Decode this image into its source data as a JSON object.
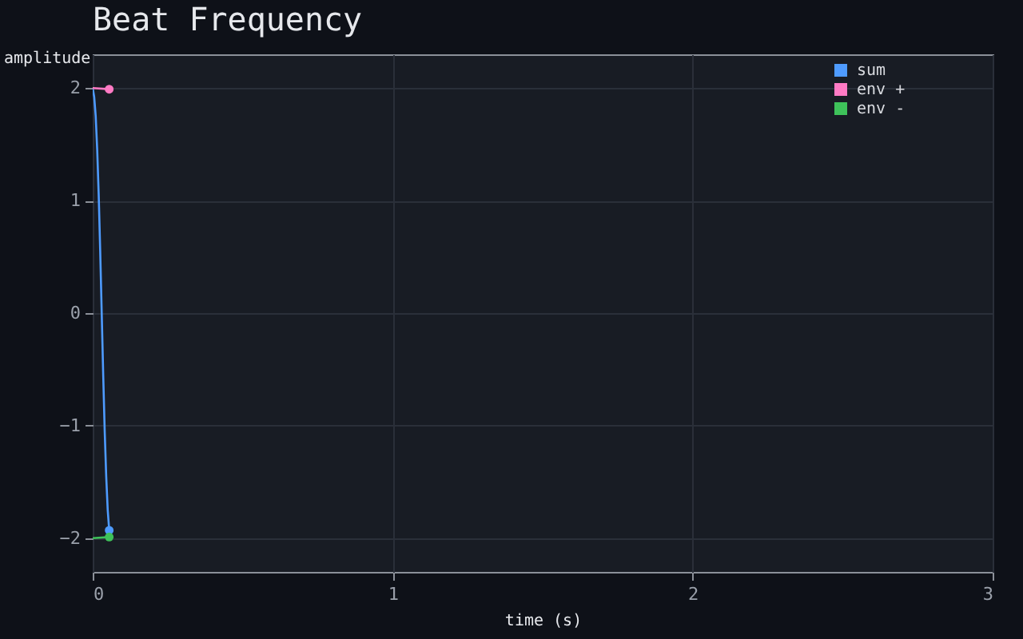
{
  "chart_data": {
    "type": "line",
    "title": "Beat Frequency",
    "xlabel": "time (s)",
    "ylabel": "amplitude",
    "xlim": [
      0,
      3
    ],
    "xticks": [
      0,
      1,
      2,
      3
    ],
    "ylim": [
      -2.3,
      2.3
    ],
    "yticks": [
      -2,
      -1,
      0,
      1,
      2
    ],
    "grid": true,
    "legend": "top right",
    "series": [
      {
        "name": "sum",
        "color": "#4e9bff",
        "x": [
          0,
          0.005,
          0.01,
          0.015,
          0.02,
          0.025,
          0.03,
          0.035,
          0.04,
          0.045,
          0.05,
          0.055
        ],
        "values": [
          2,
          1.92,
          1.75,
          1.45,
          1.05,
          0.55,
          0,
          -0.55,
          -1.05,
          -1.45,
          -1.75,
          -1.93
        ]
      },
      {
        "name": "env +",
        "color": "#ff7ac4",
        "x": [
          0,
          0.055
        ],
        "values": [
          2,
          1.99
        ]
      },
      {
        "name": "env -",
        "color": "#3ec25a",
        "x": [
          0,
          0.055
        ],
        "values": [
          -2,
          -1.99
        ]
      },
      {
        "type": "scatter",
        "color": "#4e9bff",
        "x": [
          0.055
        ],
        "values": [
          -1.93
        ]
      },
      {
        "type": "scatter",
        "color": "#ff7ac4",
        "x": [
          0.055
        ],
        "values": [
          1.99
        ]
      },
      {
        "type": "scatter",
        "color": "#3ec25a",
        "x": [
          0.055
        ],
        "values": [
          -1.99
        ]
      }
    ]
  }
}
